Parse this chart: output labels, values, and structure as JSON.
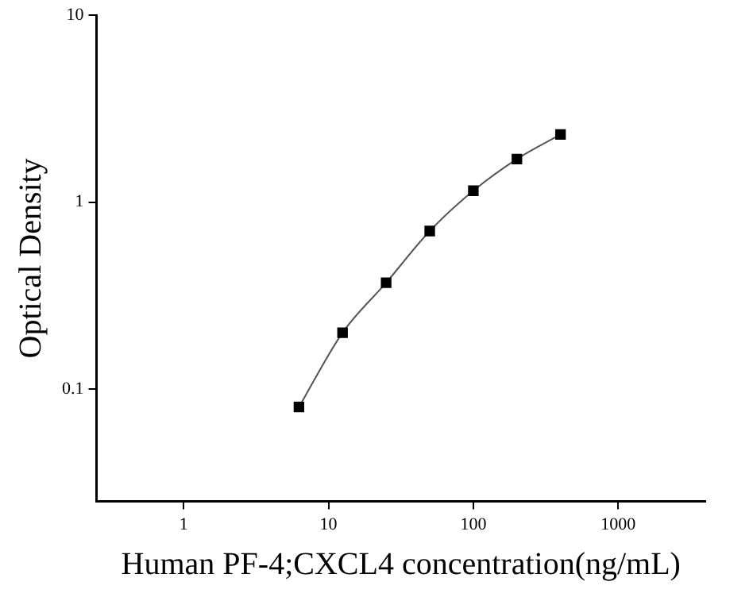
{
  "chart_data": {
    "type": "scatter",
    "xlabel": "Human PF-4;CXCL4 concentration(ng/mL)",
    "ylabel": "Optical Density",
    "log": "xy",
    "grid": false,
    "legend": false,
    "marker": "square",
    "xlim": [
      0.25,
      4000
    ],
    "xticks": [
      1,
      10,
      100,
      1000
    ],
    "ylim": [
      0.025,
      10
    ],
    "yticks": [
      0.1,
      1,
      10
    ],
    "series": [
      {
        "type": "line",
        "color": "#555555",
        "marker": "none",
        "x": [
          6.25,
          12.5,
          25,
          50,
          100,
          200,
          400
        ],
        "values": [
          0.08,
          0.2,
          0.37,
          0.7,
          1.15,
          1.7,
          2.3
        ]
      },
      {
        "color": "#000000",
        "x": [
          6.25,
          12.5,
          25,
          50,
          100,
          200,
          400
        ],
        "values": [
          0.08,
          0.2,
          0.37,
          0.7,
          1.15,
          1.7,
          2.3
        ]
      }
    ]
  }
}
